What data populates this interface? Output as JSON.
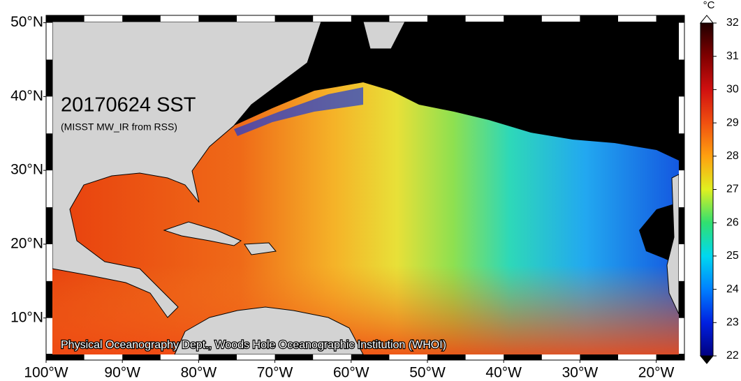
{
  "map": {
    "title": "20170624 SST",
    "subtitle": "(MISST MW_IR from RSS)",
    "credit": "Physical Oceanography Dept., Woods Hole Oceanographic Institution (WHOI)",
    "lonlim": [
      -100,
      -16.3
    ],
    "latlim": [
      4.3,
      51
    ],
    "lat_ticks": [
      {
        "value": 10,
        "label": "10°N"
      },
      {
        "value": 20,
        "label": "20°N"
      },
      {
        "value": 30,
        "label": "30°N"
      },
      {
        "value": 40,
        "label": "40°N"
      },
      {
        "value": 50,
        "label": "50°N"
      }
    ],
    "lon_ticks": [
      {
        "value": -100,
        "label": "100°W"
      },
      {
        "value": -90,
        "label": "90°W"
      },
      {
        "value": -80,
        "label": "80°W"
      },
      {
        "value": -70,
        "label": "70°W"
      },
      {
        "value": -60,
        "label": "60°W"
      },
      {
        "value": -50,
        "label": "50°W"
      },
      {
        "value": -40,
        "label": "40°W"
      },
      {
        "value": -30,
        "label": "30°W"
      },
      {
        "value": -20,
        "label": "20°W"
      }
    ],
    "colorbar": {
      "unit": "°C",
      "range": [
        22,
        32
      ],
      "ticks": [
        22,
        23,
        24,
        25,
        26,
        27,
        28,
        29,
        30,
        31,
        32
      ]
    }
  }
}
